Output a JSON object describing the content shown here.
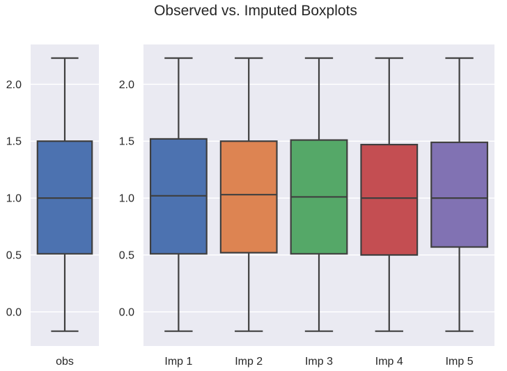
{
  "chart_data": {
    "title": "Observed vs. Imputed Boxplots",
    "type": "box",
    "style": {
      "background": "#EAEAF2",
      "grid": true,
      "grid_color": "#FFFFFF",
      "line_color": "#3F3F3F"
    },
    "ylim": [
      -0.3,
      2.35
    ],
    "yticks": [
      "0.0",
      "0.5",
      "1.0",
      "1.5",
      "2.0"
    ],
    "panels": [
      {
        "categories": [
          "obs"
        ],
        "boxes": [
          {
            "label": "obs",
            "color": "#4C72B0",
            "whisker_low": -0.17,
            "q1": 0.51,
            "median": 1.0,
            "q3": 1.5,
            "whisker_high": 2.23
          }
        ]
      },
      {
        "categories": [
          "Imp 1",
          "Imp 2",
          "Imp 3",
          "Imp 4",
          "Imp 5"
        ],
        "boxes": [
          {
            "label": "Imp 1",
            "color": "#4C72B0",
            "whisker_low": -0.17,
            "q1": 0.51,
            "median": 1.02,
            "q3": 1.52,
            "whisker_high": 2.23
          },
          {
            "label": "Imp 2",
            "color": "#DD8452",
            "whisker_low": -0.17,
            "q1": 0.52,
            "median": 1.03,
            "q3": 1.5,
            "whisker_high": 2.23
          },
          {
            "label": "Imp 3",
            "color": "#55A868",
            "whisker_low": -0.17,
            "q1": 0.51,
            "median": 1.01,
            "q3": 1.51,
            "whisker_high": 2.23
          },
          {
            "label": "Imp 4",
            "color": "#C44E52",
            "whisker_low": -0.17,
            "q1": 0.5,
            "median": 1.0,
            "q3": 1.47,
            "whisker_high": 2.23
          },
          {
            "label": "Imp 5",
            "color": "#8172B3",
            "whisker_low": -0.17,
            "q1": 0.57,
            "median": 1.0,
            "q3": 1.49,
            "whisker_high": 2.23
          }
        ]
      }
    ]
  }
}
